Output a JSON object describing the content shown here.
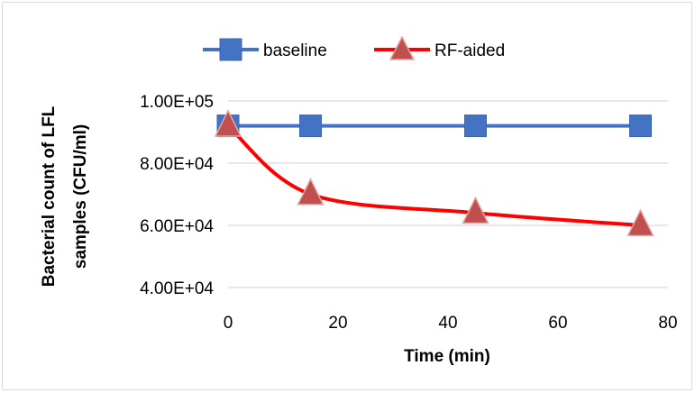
{
  "chart_data": {
    "type": "line",
    "xlabel": "Time (min)",
    "ylabel_line1": "Bacterial count of LFL",
    "ylabel_line2": "samples (CFU/ml)",
    "xlim": [
      0,
      80
    ],
    "ylim": [
      40000,
      100000
    ],
    "x_ticks": [
      0,
      20,
      40,
      60,
      80
    ],
    "x_tick_labels": [
      "0",
      "20",
      "40",
      "60",
      "80"
    ],
    "y_ticks": [
      40000,
      60000,
      80000,
      100000
    ],
    "y_tick_labels": [
      "4.00E+04",
      "6.00E+04",
      "8.00E+04",
      "1.00E+05"
    ],
    "grid": "horizontal",
    "legend_position": "top",
    "series": [
      {
        "name": "baseline",
        "color": "#4472c4",
        "marker": "square",
        "x": [
          0,
          15,
          45,
          75
        ],
        "y": [
          92000,
          92000,
          92000,
          92000
        ]
      },
      {
        "name": "RF-aided",
        "color": "#ff0000",
        "marker_fill": "#c0504d",
        "marker": "triangle",
        "smooth": true,
        "x": [
          0,
          15,
          45,
          75
        ],
        "y": [
          92000,
          70000,
          64000,
          60000
        ]
      }
    ]
  }
}
